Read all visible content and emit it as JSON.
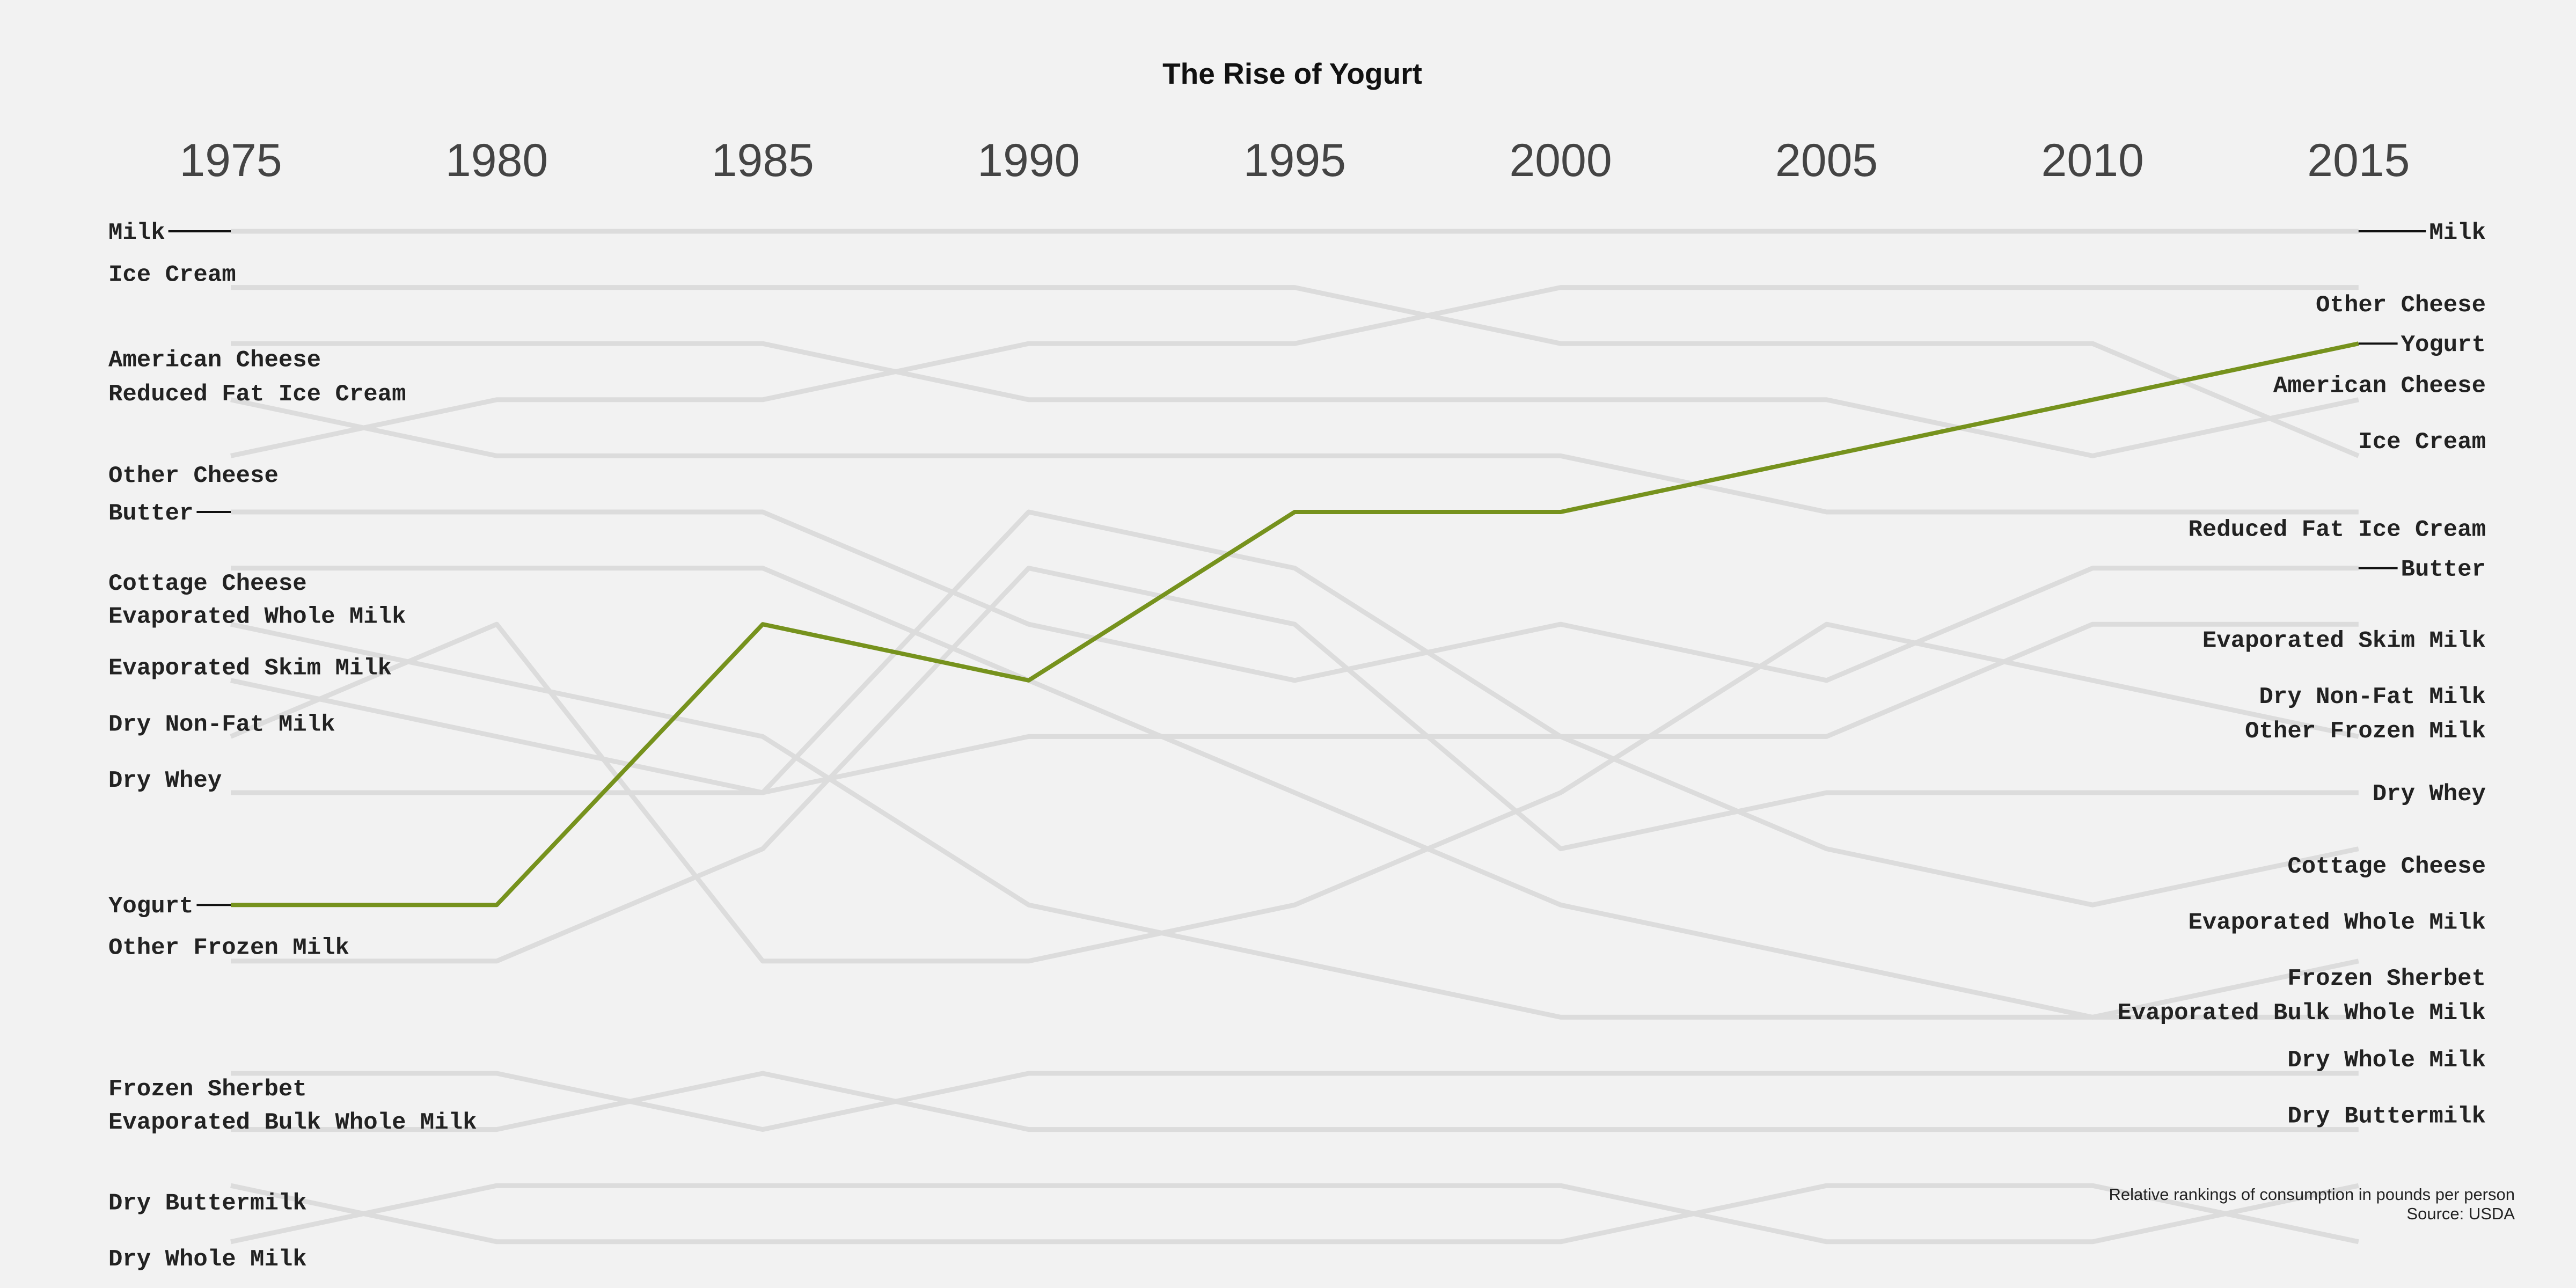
{
  "chart_data": {
    "type": "line",
    "title": "The Rise of Yogurt",
    "caption": [
      "Relative rankings of consumption in pounds per person",
      "Source: USDA"
    ],
    "x": [
      "1975",
      "1980",
      "1985",
      "1990",
      "1995",
      "2000",
      "2005",
      "2010",
      "2015"
    ],
    "highlight": "Yogurt",
    "colors": {
      "highlight": "#76921d",
      "other": "#dcdcdc",
      "background": "#f2f2f2"
    },
    "series": [
      {
        "name": "Milk",
        "values": [
          1,
          1,
          1,
          1,
          1,
          1,
          1,
          1,
          1
        ]
      },
      {
        "name": "Ice Cream",
        "values": [
          2,
          2,
          2,
          2,
          2,
          3,
          3,
          3,
          5
        ]
      },
      {
        "name": "American Cheese",
        "values": [
          3,
          3,
          3,
          4,
          4,
          4,
          4,
          5,
          4
        ]
      },
      {
        "name": "Reduced Fat Ice Cream",
        "values": [
          4,
          5,
          5,
          5,
          5,
          5,
          6,
          6,
          6
        ]
      },
      {
        "name": "Other Cheese",
        "values": [
          5,
          4,
          4,
          3,
          3,
          2,
          2,
          2,
          2
        ]
      },
      {
        "name": "Butter",
        "values": [
          6,
          6,
          6,
          8,
          9,
          8,
          9,
          7,
          7
        ]
      },
      {
        "name": "Cottage Cheese",
        "values": [
          7,
          7,
          7,
          9,
          11,
          13,
          14,
          15,
          14
        ]
      },
      {
        "name": "Evaporated Whole Milk",
        "values": [
          8,
          9,
          10,
          13,
          14,
          15,
          15,
          15,
          15
        ]
      },
      {
        "name": "Evaporated Skim Milk",
        "values": [
          9,
          10,
          11,
          6,
          7,
          10,
          10,
          8,
          8
        ]
      },
      {
        "name": "Dry Non-Fat Milk",
        "values": [
          10,
          8,
          14,
          14,
          13,
          11,
          8,
          9,
          10
        ]
      },
      {
        "name": "Dry Whey",
        "values": [
          11,
          11,
          11,
          10,
          10,
          10,
          12,
          13,
          12
        ]
      },
      {
        "name": "Yogurt",
        "values": [
          13,
          13,
          8,
          9,
          6,
          6,
          5,
          4,
          3
        ]
      },
      {
        "name": "Other Frozen Milk",
        "values": [
          14,
          14,
          12,
          7,
          8,
          12,
          11,
          11,
          11
        ]
      },
      {
        "name": "Frozen Sherbet",
        "values": [
          16,
          16,
          17,
          16,
          16,
          16,
          16,
          16,
          16
        ]
      },
      {
        "name": "Evaporated Bulk Whole Milk",
        "values": [
          17,
          17,
          16,
          17,
          17,
          17,
          17,
          17,
          17
        ]
      },
      {
        "name": "Dry Buttermilk",
        "values": [
          18,
          19,
          19,
          19,
          19,
          19,
          18,
          18,
          19
        ]
      },
      {
        "name": "Dry Whole Milk",
        "values": [
          19,
          18,
          18,
          18,
          18,
          18,
          19,
          19,
          18
        ]
      }
    ],
    "left_labels": [
      {
        "name": "Milk",
        "text": "Milk",
        "row": 1.0,
        "tick": true
      },
      {
        "name": "Ice Cream",
        "text": "Ice Cream",
        "row": 1.75,
        "tick": false
      },
      {
        "name": "American Cheese",
        "text": "American Cheese",
        "row": 3.27,
        "tick": false
      },
      {
        "name": "Reduced Fat Ice Cream",
        "text": "Reduced Fat Ice Cream",
        "row": 3.88,
        "tick": false
      },
      {
        "name": "Other Cheese",
        "text": "Other Cheese",
        "row": 5.33,
        "tick": false
      },
      {
        "name": "Butter",
        "text": "Butter",
        "row": 6.0,
        "tick": true
      },
      {
        "name": "Cottage Cheese",
        "text": "Cottage Cheese",
        "row": 7.25,
        "tick": false
      },
      {
        "name": "Evaporated Whole Milk",
        "text": "Evaporated Whole Milk",
        "row": 7.84,
        "tick": false
      },
      {
        "name": "Evaporated Skim Milk",
        "text": "Evaporated Skim Milk",
        "row": 8.76,
        "tick": false
      },
      {
        "name": "Dry Non-Fat Milk",
        "text": "Dry Non-Fat Milk",
        "row": 9.76,
        "tick": false
      },
      {
        "name": "Dry Whey",
        "text": "Dry Whey",
        "row": 10.76,
        "tick": false
      },
      {
        "name": "Yogurt",
        "text": "Yogurt",
        "row": 13.0,
        "tick": true
      },
      {
        "name": "Other Frozen Milk",
        "text": "Other Frozen Milk",
        "row": 13.74,
        "tick": false
      },
      {
        "name": "Frozen Sherbet",
        "text": "Frozen Sherbet",
        "row": 16.26,
        "tick": false
      },
      {
        "name": "Evaporated Bulk Whole Milk",
        "text": "Evaporated Bulk Whole Milk",
        "row": 16.85,
        "tick": false
      },
      {
        "name": "Dry Buttermilk",
        "text": "Dry Buttermilk",
        "row": 18.29,
        "tick": false
      },
      {
        "name": "Dry Whole Milk",
        "text": "Dry Whole Milk",
        "row": 19.29,
        "tick": false
      }
    ],
    "right_labels": [
      {
        "name": "Milk",
        "text": "Milk",
        "row": 1.0,
        "tick": true
      },
      {
        "name": "Other Cheese",
        "text": "Other Cheese",
        "row": 2.29,
        "tick": false
      },
      {
        "name": "Yogurt",
        "text": "Yogurt",
        "row": 3.0,
        "tick": true
      },
      {
        "name": "American Cheese",
        "text": "American Cheese",
        "row": 3.73,
        "tick": false
      },
      {
        "name": "Ice Cream",
        "text": "Ice Cream",
        "row": 4.73,
        "tick": false
      },
      {
        "name": "Reduced Fat Ice Cream",
        "text": "Reduced Fat Ice Cream",
        "row": 6.29,
        "tick": false
      },
      {
        "name": "Butter",
        "text": "Butter",
        "row": 7.0,
        "tick": true
      },
      {
        "name": "Evaporated Skim Milk",
        "text": "Evaporated Skim Milk",
        "row": 8.27,
        "tick": false
      },
      {
        "name": "Dry Non-Fat Milk",
        "text": "Dry Non-Fat Milk",
        "row": 9.27,
        "tick": false
      },
      {
        "name": "Other Frozen Milk",
        "text": "Other Frozen Milk",
        "row": 9.88,
        "tick": false
      },
      {
        "name": "Dry Whey",
        "text": "Dry Whey",
        "row": 11.0,
        "tick": false
      },
      {
        "name": "Cottage Cheese",
        "text": "Cottage Cheese",
        "row": 12.29,
        "tick": false
      },
      {
        "name": "Evaporated Whole Milk",
        "text": "Evaporated Whole Milk",
        "row": 13.29,
        "tick": false
      },
      {
        "name": "Frozen Sherbet",
        "text": "Frozen Sherbet",
        "row": 14.29,
        "tick": false
      },
      {
        "name": "Evaporated Bulk Whole Milk",
        "text": "Evaporated Bulk Whole Milk",
        "row": 14.9,
        "tick": false
      },
      {
        "name": "Dry Whole Milk",
        "text": "Dry Whole Milk",
        "row": 15.74,
        "tick": false
      },
      {
        "name": "Dry Buttermilk",
        "text": "Dry Buttermilk",
        "row": 16.74,
        "tick": false
      }
    ]
  }
}
